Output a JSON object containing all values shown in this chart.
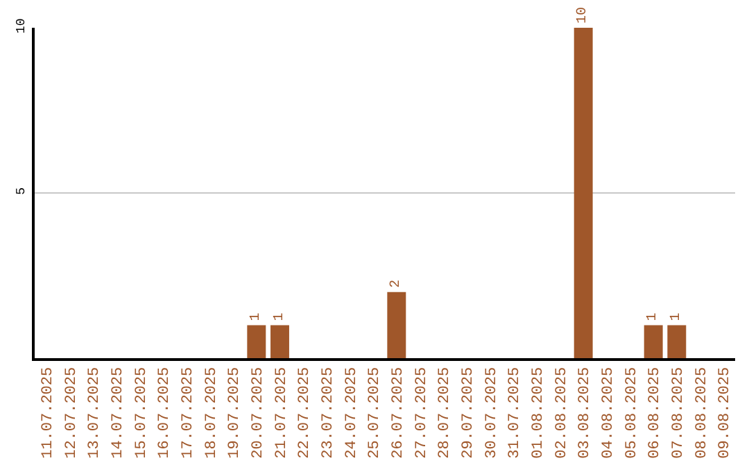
{
  "chart_data": {
    "type": "bar",
    "categories": [
      "11.07.2025",
      "12.07.2025",
      "13.07.2025",
      "14.07.2025",
      "15.07.2025",
      "16.07.2025",
      "17.07.2025",
      "18.07.2025",
      "19.07.2025",
      "20.07.2025",
      "21.07.2025",
      "22.07.2025",
      "23.07.2025",
      "24.07.2025",
      "25.07.2025",
      "26.07.2025",
      "27.07.2025",
      "28.07.2025",
      "29.07.2025",
      "30.07.2025",
      "31.07.2025",
      "01.08.2025",
      "02.08.2025",
      "03.08.2025",
      "04.08.2025",
      "05.08.2025",
      "06.08.2025",
      "07.08.2025",
      "08.08.2025",
      "09.08.2025"
    ],
    "values": [
      0,
      0,
      0,
      0,
      0,
      0,
      0,
      0,
      0,
      1,
      1,
      0,
      0,
      0,
      0,
      2,
      0,
      0,
      0,
      0,
      0,
      0,
      0,
      10,
      0,
      0,
      1,
      1,
      0,
      0
    ],
    "value_labels": [
      null,
      null,
      null,
      null,
      null,
      null,
      null,
      null,
      null,
      "1",
      "1",
      null,
      null,
      null,
      null,
      "2",
      null,
      null,
      null,
      null,
      null,
      null,
      null,
      "10",
      null,
      null,
      "1",
      "1",
      null,
      null
    ],
    "color": "#a0572a",
    "ylim": [
      0,
      10
    ],
    "yticks": [
      5,
      10
    ],
    "grid": "y",
    "legend": false
  }
}
